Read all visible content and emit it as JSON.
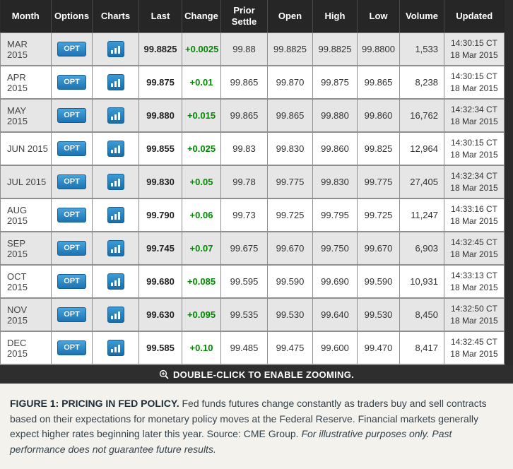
{
  "table": {
    "columns": [
      "Month",
      "Options",
      "Charts",
      "Last",
      "Change",
      "Prior Settle",
      "Open",
      "High",
      "Low",
      "Volume",
      "Updated"
    ],
    "opt_button_label": "OPT",
    "rows": [
      {
        "month": "MAR 2015",
        "last": "99.8825",
        "change": "+0.0025",
        "prior_settle": "99.88",
        "open": "99.8825",
        "high": "99.8825",
        "low": "99.8800",
        "volume": "1,533",
        "updated_time": "14:30:15 CT",
        "updated_date": "18 Mar 2015"
      },
      {
        "month": "APR 2015",
        "last": "99.875",
        "change": "+0.01",
        "prior_settle": "99.865",
        "open": "99.870",
        "high": "99.875",
        "low": "99.865",
        "volume": "8,238",
        "updated_time": "14:30:15 CT",
        "updated_date": "18 Mar 2015"
      },
      {
        "month": "MAY 2015",
        "last": "99.880",
        "change": "+0.015",
        "prior_settle": "99.865",
        "open": "99.865",
        "high": "99.880",
        "low": "99.860",
        "volume": "16,762",
        "updated_time": "14:32:34 CT",
        "updated_date": "18 Mar 2015"
      },
      {
        "month": "JUN 2015",
        "last": "99.855",
        "change": "+0.025",
        "prior_settle": "99.83",
        "open": "99.830",
        "high": "99.860",
        "low": "99.825",
        "volume": "12,964",
        "updated_time": "14:30:15 CT",
        "updated_date": "18 Mar 2015"
      },
      {
        "month": "JUL 2015",
        "last": "99.830",
        "change": "+0.05",
        "prior_settle": "99.78",
        "open": "99.775",
        "high": "99.830",
        "low": "99.775",
        "volume": "27,405",
        "updated_time": "14:32:34 CT",
        "updated_date": "18 Mar 2015"
      },
      {
        "month": "AUG 2015",
        "last": "99.790",
        "change": "+0.06",
        "prior_settle": "99.73",
        "open": "99.725",
        "high": "99.795",
        "low": "99.725",
        "volume": "11,247",
        "updated_time": "14:33:16 CT",
        "updated_date": "18 Mar 2015"
      },
      {
        "month": "SEP 2015",
        "last": "99.745",
        "change": "+0.07",
        "prior_settle": "99.675",
        "open": "99.670",
        "high": "99.750",
        "low": "99.670",
        "volume": "6,903",
        "updated_time": "14:32:45 CT",
        "updated_date": "18 Mar 2015"
      },
      {
        "month": "OCT 2015",
        "last": "99.680",
        "change": "+0.085",
        "prior_settle": "99.595",
        "open": "99.590",
        "high": "99.690",
        "low": "99.590",
        "volume": "10,931",
        "updated_time": "14:33:13 CT",
        "updated_date": "18 Mar 2015"
      },
      {
        "month": "NOV 2015",
        "last": "99.630",
        "change": "+0.095",
        "prior_settle": "99.535",
        "open": "99.530",
        "high": "99.640",
        "low": "99.530",
        "volume": "8,450",
        "updated_time": "14:32:50 CT",
        "updated_date": "18 Mar 2015"
      },
      {
        "month": "DEC 2015",
        "last": "99.585",
        "change": "+0.10",
        "prior_settle": "99.485",
        "open": "99.475",
        "high": "99.600",
        "low": "99.470",
        "volume": "8,417",
        "updated_time": "14:32:45 CT",
        "updated_date": "18 Mar 2015"
      }
    ]
  },
  "footer": {
    "zoom_notice": "DOUBLE-CLICK TO ENABLE ZOOMING."
  },
  "caption": {
    "title": "FIGURE 1: PRICING IN FED POLICY.",
    "body": " Fed funds futures change constantly as traders buy and sell contracts based on their expectations for monetary policy moves at the Federal Reserve. Financial markets generally expect higher rates beginning later this year. Source: CME Group. ",
    "disclaimer": "For illustrative purposes only. Past performance does not guarantee future results."
  },
  "colors": {
    "positive_change_green": "#008a00",
    "button_blue": "#1c74b2",
    "header_bg": "#262626",
    "frame_dark": "#2b2b2b",
    "row_alt_gray": "#e6e6e6",
    "caption_bg": "#f4f2ed"
  }
}
